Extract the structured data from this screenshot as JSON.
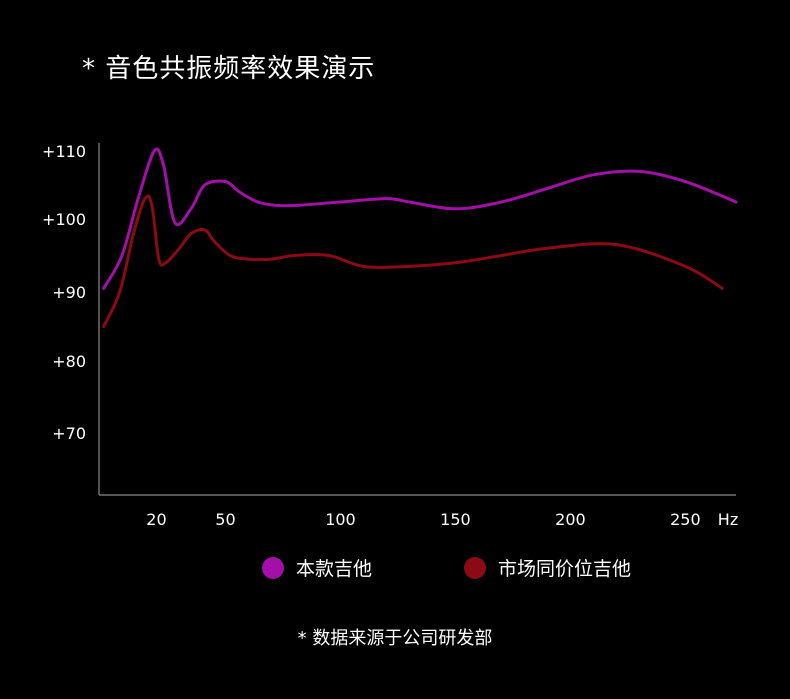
{
  "title": "* 音色共振频率效果演示",
  "footnote": "* 数据来源于公司研发部",
  "chart_data": {
    "type": "line",
    "title": "",
    "xlabel": "",
    "ylabel": "",
    "x_unit_label": "Hz",
    "x_ticks": [
      20,
      50,
      100,
      150,
      200,
      250
    ],
    "y_tick_labels": [
      "+110",
      "+100",
      "+90",
      "+80",
      "+70"
    ],
    "y_tick_values": [
      110,
      100,
      90,
      80,
      70
    ],
    "xlim": [
      -5,
      272
    ],
    "grid": false,
    "legend_position": "bottom-center",
    "series": [
      {
        "name": "本款吉他",
        "color": "#a30fa8",
        "x": [
          -3,
          5,
          12,
          19,
          23,
          28,
          35,
          41,
          50,
          56,
          64,
          72,
          81,
          100,
          120,
          130,
          150,
          170,
          190,
          210,
          230,
          250,
          272
        ],
        "y": [
          90.5,
          95,
          103,
          110,
          108,
          99.5,
          101.5,
          105,
          105.5,
          104,
          102.5,
          102,
          102,
          102.5,
          103,
          102.5,
          101.5,
          102.5,
          104.5,
          106.5,
          107,
          105.5,
          102.5
        ]
      },
      {
        "name": "市场同价位吉他",
        "color": "#8b0a14",
        "x": [
          -3,
          4,
          10,
          15,
          18,
          21,
          24,
          30,
          35,
          41,
          45,
          52,
          60,
          70,
          80,
          95,
          110,
          130,
          150,
          170,
          190,
          220,
          250,
          266
        ],
        "y": [
          85,
          90,
          98,
          103,
          102,
          94.5,
          94,
          96,
          98,
          98.5,
          97,
          95,
          94.5,
          94.5,
          95,
          95,
          93.5,
          93.5,
          94,
          95,
          96,
          96.5,
          93.5,
          90.5
        ]
      }
    ]
  }
}
